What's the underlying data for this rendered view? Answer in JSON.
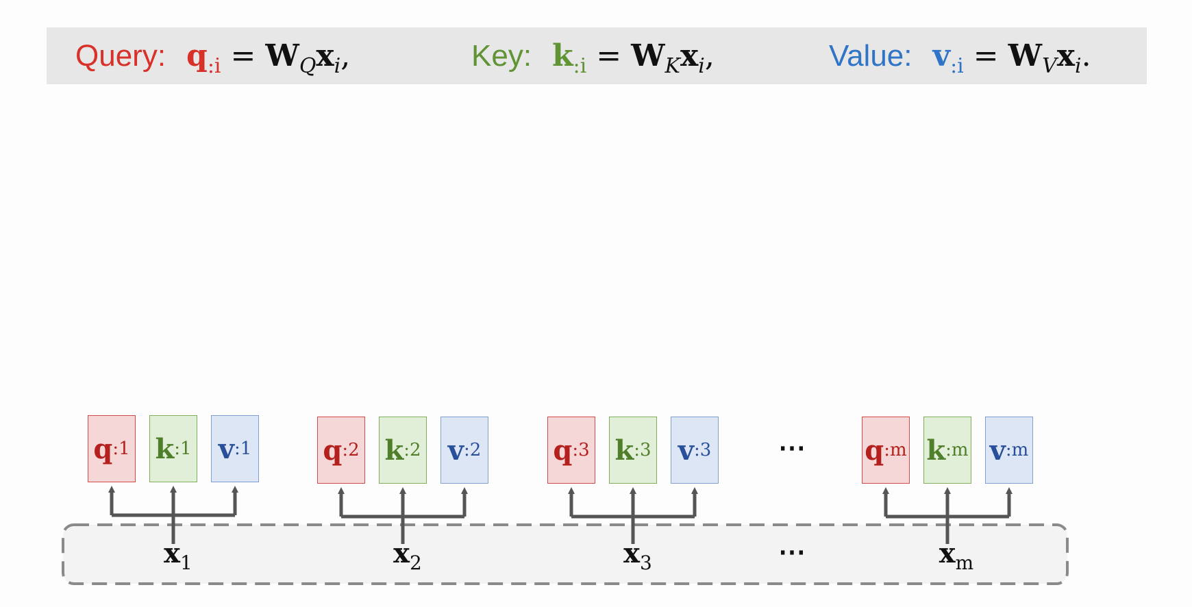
{
  "banner": {
    "query_label": "Query:",
    "key_label": "Key:",
    "value_label": "Value:",
    "query_eq": {
      "var": "q",
      "sub": ":i",
      "equals": "=",
      "W": "W",
      "W_sub": "Q",
      "x": "x",
      "x_sub": "i",
      "end": ","
    },
    "key_eq": {
      "var": "k",
      "sub": ":i",
      "equals": "=",
      "W": "W",
      "W_sub": "K",
      "x": "x",
      "x_sub": "i",
      "end": ","
    },
    "value_eq": {
      "var": "v",
      "sub": ":i",
      "equals": "=",
      "W": "W",
      "W_sub": "V",
      "x": "x",
      "x_sub": "i",
      "end": "."
    }
  },
  "colors": {
    "query": "#d8312a",
    "key": "#5f9334",
    "value": "#2f74c6",
    "arrow": "#555555"
  },
  "groups": [
    {
      "q": "q",
      "q_sub": ":1",
      "k": "k",
      "k_sub": ":1",
      "v": "v",
      "v_sub": ":1",
      "x": "x",
      "x_sub": "1"
    },
    {
      "q": "q",
      "q_sub": ":2",
      "k": "k",
      "k_sub": ":2",
      "v": "v",
      "v_sub": ":2",
      "x": "x",
      "x_sub": "2"
    },
    {
      "q": "q",
      "q_sub": ":3",
      "k": "k",
      "k_sub": ":3",
      "v": "v",
      "v_sub": ":3",
      "x": "x",
      "x_sub": "3"
    },
    {
      "q": "q",
      "q_sub": ":m",
      "k": "k",
      "k_sub": ":m",
      "v": "v",
      "v_sub": ":m",
      "x": "x",
      "x_sub": "m"
    }
  ],
  "ellipsis_top": "⋯",
  "ellipsis_bottom": "⋯"
}
